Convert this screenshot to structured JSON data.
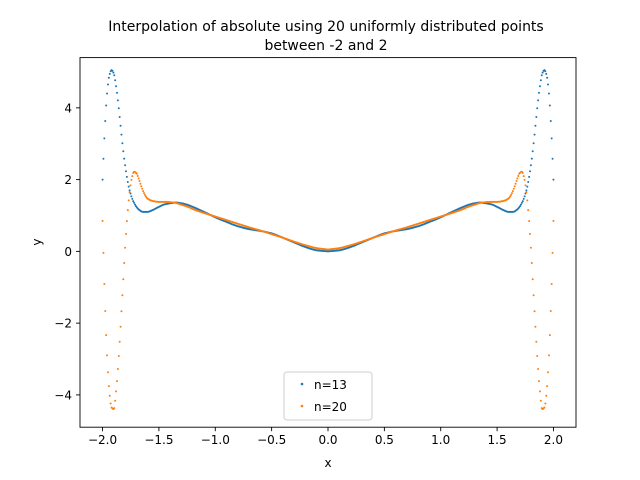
{
  "chart_data": {
    "type": "scatter",
    "title_line1": "Interpolation of absolute using 20 uniformly distributed points",
    "title_line2": "between -2 and 2",
    "xlabel": "x",
    "ylabel": "y",
    "xlim": [
      -2.2,
      2.2
    ],
    "ylim": [
      -4.9,
      5.4
    ],
    "xticks": [
      -2.0,
      -1.5,
      -1.0,
      -0.5,
      0.0,
      0.5,
      1.0,
      1.5,
      2.0
    ],
    "xtick_labels": [
      "−2.0",
      "−1.5",
      "−1.0",
      "−0.5",
      "0.0",
      "0.5",
      "1.0",
      "1.5",
      "2.0"
    ],
    "yticks": [
      -4,
      -2,
      0,
      2,
      4
    ],
    "ytick_labels": [
      "−4",
      "−2",
      "0",
      "2",
      "4"
    ],
    "grid": false,
    "legend_position": "bottom-center",
    "series": [
      {
        "name": "n=13",
        "color": "#1f77b4",
        "anchors": {
          "x": [
            -2.0,
            -1.98,
            -1.96,
            -1.94,
            -1.92,
            -1.9,
            -1.88,
            -1.86,
            -1.84,
            -1.82,
            -1.8,
            -1.76,
            -1.72,
            -1.68,
            -1.64,
            -1.6,
            -1.55,
            -1.5,
            -1.45,
            -1.4,
            -1.35,
            -1.3,
            -1.25,
            -1.2,
            -1.1,
            -1.0,
            -0.9,
            -0.8,
            -0.7,
            -0.6,
            -0.5,
            -0.4,
            -0.3,
            -0.2,
            -0.1,
            0.0
          ],
          "y": [
            2.0,
            3.4,
            4.4,
            4.9,
            5.05,
            4.95,
            4.6,
            4.1,
            3.5,
            2.9,
            2.4,
            1.7,
            1.35,
            1.17,
            1.1,
            1.1,
            1.16,
            1.24,
            1.31,
            1.34,
            1.36,
            1.34,
            1.3,
            1.24,
            1.1,
            0.95,
            0.82,
            0.7,
            0.62,
            0.57,
            0.5,
            0.38,
            0.25,
            0.12,
            0.03,
            0.0
          ]
        }
      },
      {
        "name": "n=20",
        "color": "#ff7f0e",
        "anchors": {
          "x": [
            -2.0,
            -1.98,
            -1.96,
            -1.94,
            -1.92,
            -1.9,
            -1.88,
            -1.86,
            -1.84,
            -1.82,
            -1.8,
            -1.78,
            -1.76,
            -1.74,
            -1.72,
            -1.7,
            -1.68,
            -1.66,
            -1.64,
            -1.62,
            -1.6,
            -1.55,
            -1.5,
            -1.45,
            -1.4,
            -1.35,
            -1.3,
            -1.25,
            -1.2,
            -1.1,
            -1.0,
            -0.9,
            -0.8,
            -0.7,
            -0.6,
            -0.5,
            -0.4,
            -0.3,
            -0.2,
            -0.1,
            0.0
          ],
          "y": [
            0.85,
            -1.3,
            -2.9,
            -3.9,
            -4.35,
            -4.4,
            -3.9,
            -3.1,
            -2.1,
            -1.0,
            0.1,
            1.0,
            1.65,
            2.05,
            2.22,
            2.18,
            2.03,
            1.85,
            1.68,
            1.55,
            1.47,
            1.4,
            1.38,
            1.38,
            1.37,
            1.35,
            1.3,
            1.25,
            1.18,
            1.07,
            0.97,
            0.87,
            0.77,
            0.67,
            0.58,
            0.48,
            0.38,
            0.27,
            0.17,
            0.09,
            0.05
          ]
        }
      }
    ]
  }
}
